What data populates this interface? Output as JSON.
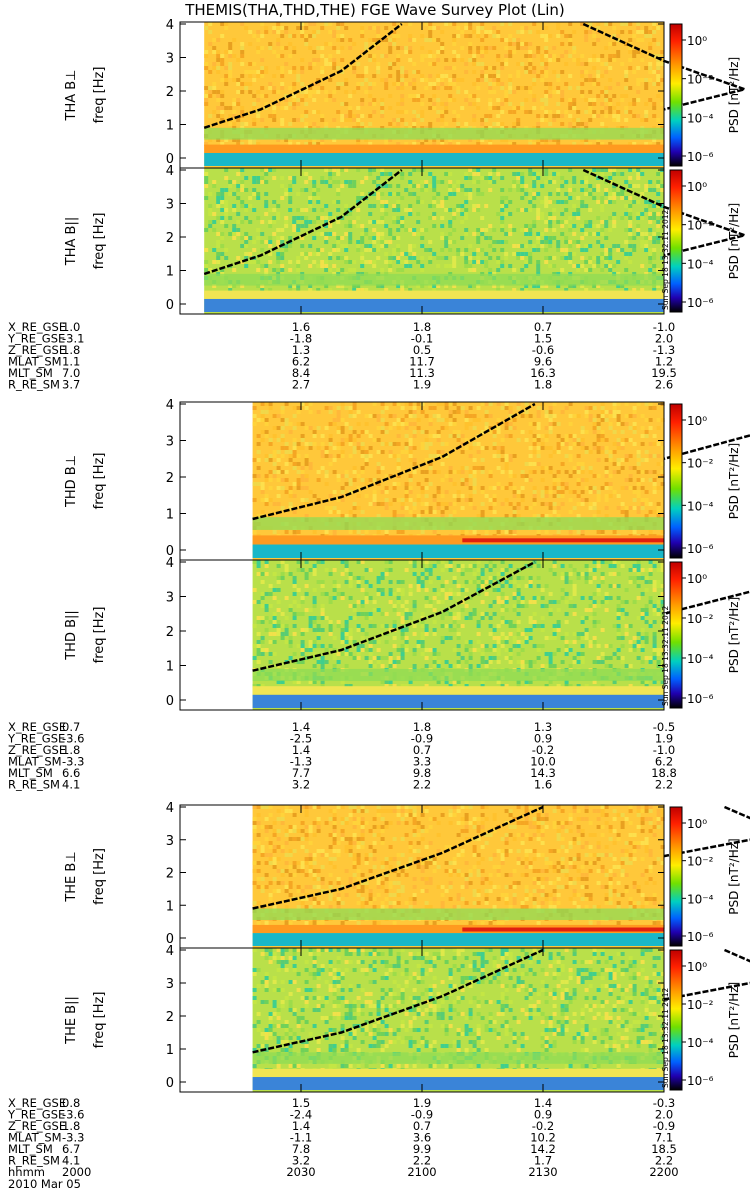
{
  "title": "THEMIS(THA,THD,THE) FGE Wave Survey Plot (Lin)",
  "stamp": "Sun Sep 18 13:32:11 2012",
  "colorbar": {
    "label": "PSD [nT²/Hz]",
    "ticks": [
      "10⁰",
      "10⁻²",
      "10⁻⁴",
      "10⁻⁶"
    ]
  },
  "freq_label": "freq [Hz]",
  "chart_data": [
    {
      "type": "heatmap",
      "title": "THEMIS(THA,THD,THE) FGE Wave Survey Plot (Lin)",
      "probe": "THA",
      "panels": [
        {
          "name": "THA B⊥",
          "ylabel": "freq [Hz]",
          "ylim": [
            0,
            4
          ],
          "yticks": [
            0,
            1,
            2,
            3,
            4
          ],
          "data_start": "2006",
          "tone": "warm",
          "curve_left": [
            [
              2006,
              0.9
            ],
            [
              2020,
              1.45
            ],
            [
              2040,
              2.6
            ],
            [
              2055,
              4.0
            ]
          ],
          "curve_right": [
            [
              2140,
              4.0
            ],
            [
              2160,
              2.9
            ],
            [
              2180,
              2.05
            ],
            [
              2200,
              1.45
            ]
          ]
        },
        {
          "name": "THA B||",
          "ylabel": "freq [Hz]",
          "ylim": [
            0,
            4
          ],
          "yticks": [
            0,
            1,
            2,
            3,
            4
          ],
          "data_start": "2006",
          "tone": "cool",
          "curve_left": [
            [
              2006,
              0.9
            ],
            [
              2020,
              1.45
            ],
            [
              2040,
              2.6
            ],
            [
              2055,
              4.0
            ]
          ],
          "curve_right": [
            [
              2140,
              4.0
            ],
            [
              2160,
              2.9
            ],
            [
              2180,
              2.05
            ],
            [
              2200,
              1.45
            ]
          ]
        }
      ],
      "ephemeris": {
        "labels": [
          "X_RE_GSE",
          "Y_RE_GSE",
          "Z_RE_GSE",
          "MLAT_SM",
          "MLT_SM",
          "R_RE_SM"
        ],
        "columns": [
          [
            "1.0",
            "-3.1",
            "1.8",
            "1.1",
            "7.0",
            "3.7"
          ],
          [
            "1.6",
            "-1.8",
            "1.3",
            "6.2",
            "8.4",
            "2.7"
          ],
          [
            "1.8",
            "-0.1",
            "0.5",
            "11.7",
            "11.3",
            "1.9"
          ],
          [
            "0.7",
            "1.5",
            "-0.6",
            "9.6",
            "16.3",
            "1.8"
          ],
          [
            "-1.0",
            "2.0",
            "-1.3",
            "1.2",
            "19.5",
            "2.6"
          ]
        ]
      }
    },
    {
      "type": "heatmap",
      "probe": "THD",
      "panels": [
        {
          "name": "THD B⊥",
          "ylabel": "freq [Hz]",
          "ylim": [
            0,
            4
          ],
          "yticks": [
            0,
            1,
            2,
            3,
            4
          ],
          "data_start": "2018",
          "tone": "warm",
          "curve_left": [
            [
              2018,
              0.85
            ],
            [
              2040,
              1.45
            ],
            [
              2065,
              2.55
            ],
            [
              2088,
              4.0
            ]
          ],
          "curve_right": [
            [
              2183,
              4.0
            ],
            [
              2190,
              3.4
            ],
            [
              2200,
              2.5
            ]
          ]
        },
        {
          "name": "THD B||",
          "ylabel": "freq [Hz]",
          "ylim": [
            0,
            4
          ],
          "yticks": [
            0,
            1,
            2,
            3,
            4
          ],
          "data_start": "2018",
          "tone": "cool",
          "curve_left": [
            [
              2018,
              0.85
            ],
            [
              2040,
              1.45
            ],
            [
              2065,
              2.55
            ],
            [
              2088,
              4.0
            ]
          ],
          "curve_right": [
            [
              2183,
              4.0
            ],
            [
              2190,
              3.4
            ],
            [
              2200,
              2.5
            ]
          ]
        }
      ],
      "ephemeris": {
        "labels": [
          "X_RE_GSE",
          "Y_RE_GSE",
          "Z_RE_GSE",
          "MLAT_SM",
          "MLT_SM",
          "R_RE_SM"
        ],
        "columns": [
          [
            "0.7",
            "-3.6",
            "1.8",
            "-3.3",
            "6.6",
            "4.1"
          ],
          [
            "1.4",
            "-2.5",
            "1.4",
            "-1.3",
            "7.7",
            "3.2"
          ],
          [
            "1.8",
            "-0.9",
            "0.7",
            "3.3",
            "9.8",
            "2.2"
          ],
          [
            "1.3",
            "0.9",
            "-0.2",
            "10.0",
            "14.3",
            "1.6"
          ],
          [
            "-0.5",
            "1.9",
            "-1.0",
            "6.2",
            "18.8",
            "2.2"
          ]
        ]
      }
    },
    {
      "type": "heatmap",
      "probe": "THE",
      "panels": [
        {
          "name": "THE B⊥",
          "ylabel": "freq [Hz]",
          "ylim": [
            0,
            4
          ],
          "yticks": [
            0,
            1,
            2,
            3,
            4
          ],
          "data_start": "2018",
          "tone": "warm",
          "curve_left": [
            [
              2018,
              0.9
            ],
            [
              2040,
              1.5
            ],
            [
              2065,
              2.6
            ],
            [
              2090,
              4.0
            ]
          ],
          "curve_right": [
            [
              2175,
              4.0
            ],
            [
              2190,
              3.2
            ],
            [
              2200,
              2.5
            ]
          ]
        },
        {
          "name": "THE B||",
          "ylabel": "freq [Hz]",
          "ylim": [
            0,
            4
          ],
          "yticks": [
            0,
            1,
            2,
            3,
            4
          ],
          "data_start": "2018",
          "tone": "cool",
          "curve_left": [
            [
              2018,
              0.9
            ],
            [
              2040,
              1.5
            ],
            [
              2065,
              2.6
            ],
            [
              2090,
              4.0
            ]
          ],
          "curve_right": [
            [
              2175,
              4.0
            ],
            [
              2190,
              3.2
            ],
            [
              2200,
              2.5
            ]
          ]
        }
      ],
      "ephemeris": {
        "labels": [
          "X_RE_GSE",
          "Y_RE_GSE",
          "Z_RE_GSE",
          "MLAT_SM",
          "MLT_SM",
          "R_RE_SM"
        ],
        "columns": [
          [
            "0.8",
            "-3.6",
            "1.8",
            "-3.3",
            "6.7",
            "4.1"
          ],
          [
            "1.5",
            "-2.4",
            "1.4",
            "-1.1",
            "7.8",
            "3.2"
          ],
          [
            "1.9",
            "-0.9",
            "0.7",
            "3.6",
            "9.9",
            "2.2"
          ],
          [
            "1.4",
            "0.9",
            "-0.2",
            "10.2",
            "14.2",
            "1.7"
          ],
          [
            "-0.3",
            "2.0",
            "-0.9",
            "7.1",
            "18.5",
            "2.2"
          ]
        ]
      }
    }
  ],
  "time_axis": {
    "label": "hhmm",
    "ticks": [
      "2000",
      "2030",
      "2100",
      "2130",
      "2200"
    ],
    "date": "2010 Mar 05"
  }
}
